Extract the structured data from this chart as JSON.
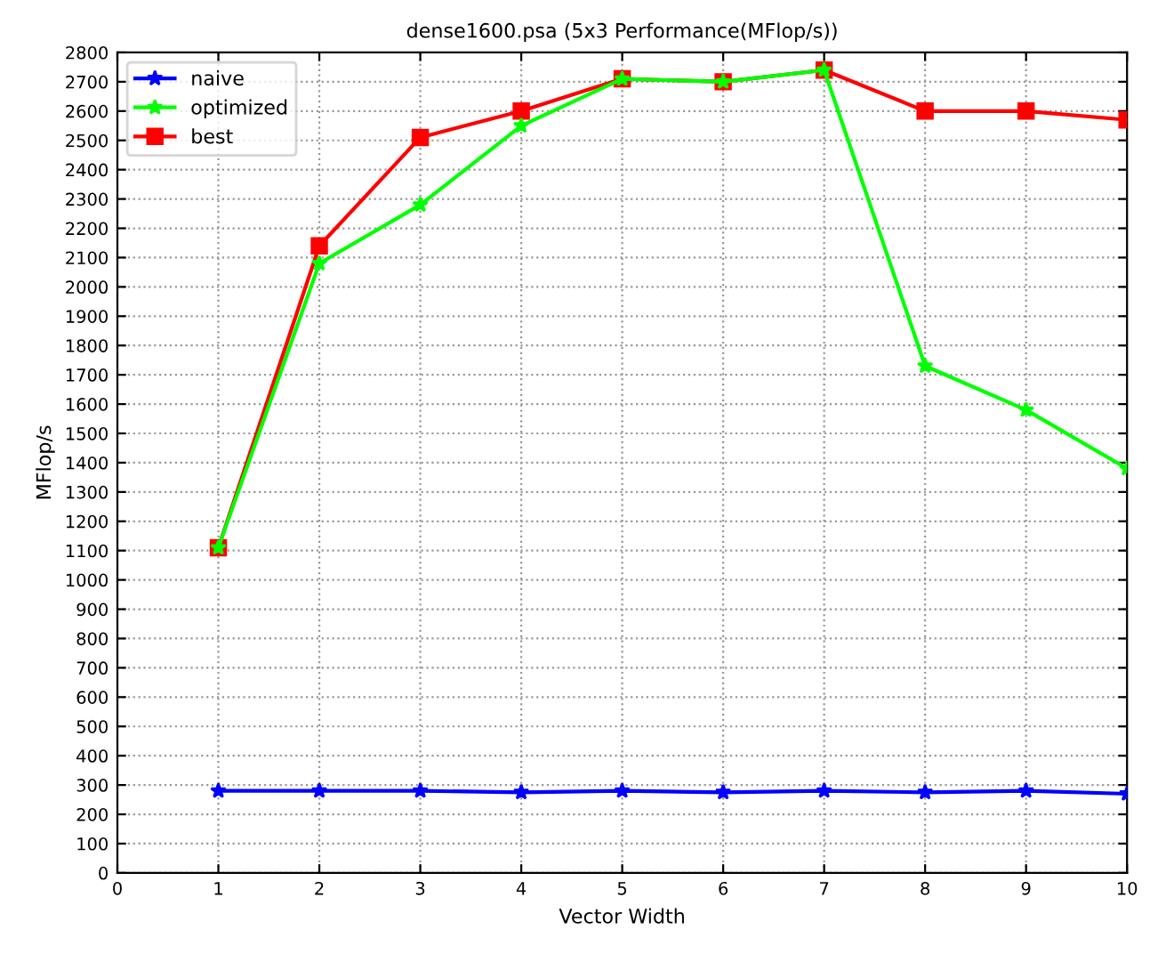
{
  "chart_data": {
    "type": "line",
    "title": "dense1600.psa (5x3 Performance(MFlop/s))",
    "xlabel": "Vector Width",
    "ylabel": "MFlop/s",
    "x": [
      1,
      2,
      3,
      4,
      5,
      6,
      7,
      8,
      9,
      10
    ],
    "series": [
      {
        "name": "naive",
        "color": "#0000ff",
        "marker": "star",
        "values": [
          280,
          280,
          280,
          275,
          280,
          275,
          280,
          275,
          280,
          270
        ]
      },
      {
        "name": "optimized",
        "color": "#00ff00",
        "marker": "star",
        "values": [
          1110,
          2080,
          2280,
          2550,
          2710,
          2700,
          2740,
          1730,
          1580,
          1380
        ]
      },
      {
        "name": "best",
        "color": "#ff0000",
        "marker": "square",
        "values": [
          1110,
          2140,
          2510,
          2600,
          2710,
          2700,
          2740,
          2600,
          2600,
          2570
        ]
      }
    ],
    "xlim": [
      0,
      10
    ],
    "xticks": [
      0,
      1,
      2,
      3,
      4,
      5,
      6,
      7,
      8,
      9,
      10
    ],
    "ylim": [
      0,
      2800
    ],
    "yticks": [
      0,
      100,
      200,
      300,
      400,
      500,
      600,
      700,
      800,
      900,
      1000,
      1100,
      1200,
      1300,
      1400,
      1500,
      1600,
      1700,
      1800,
      1900,
      2000,
      2100,
      2200,
      2300,
      2400,
      2500,
      2600,
      2700,
      2800
    ],
    "grid": true,
    "legend": "top left",
    "line_style": "solid"
  }
}
